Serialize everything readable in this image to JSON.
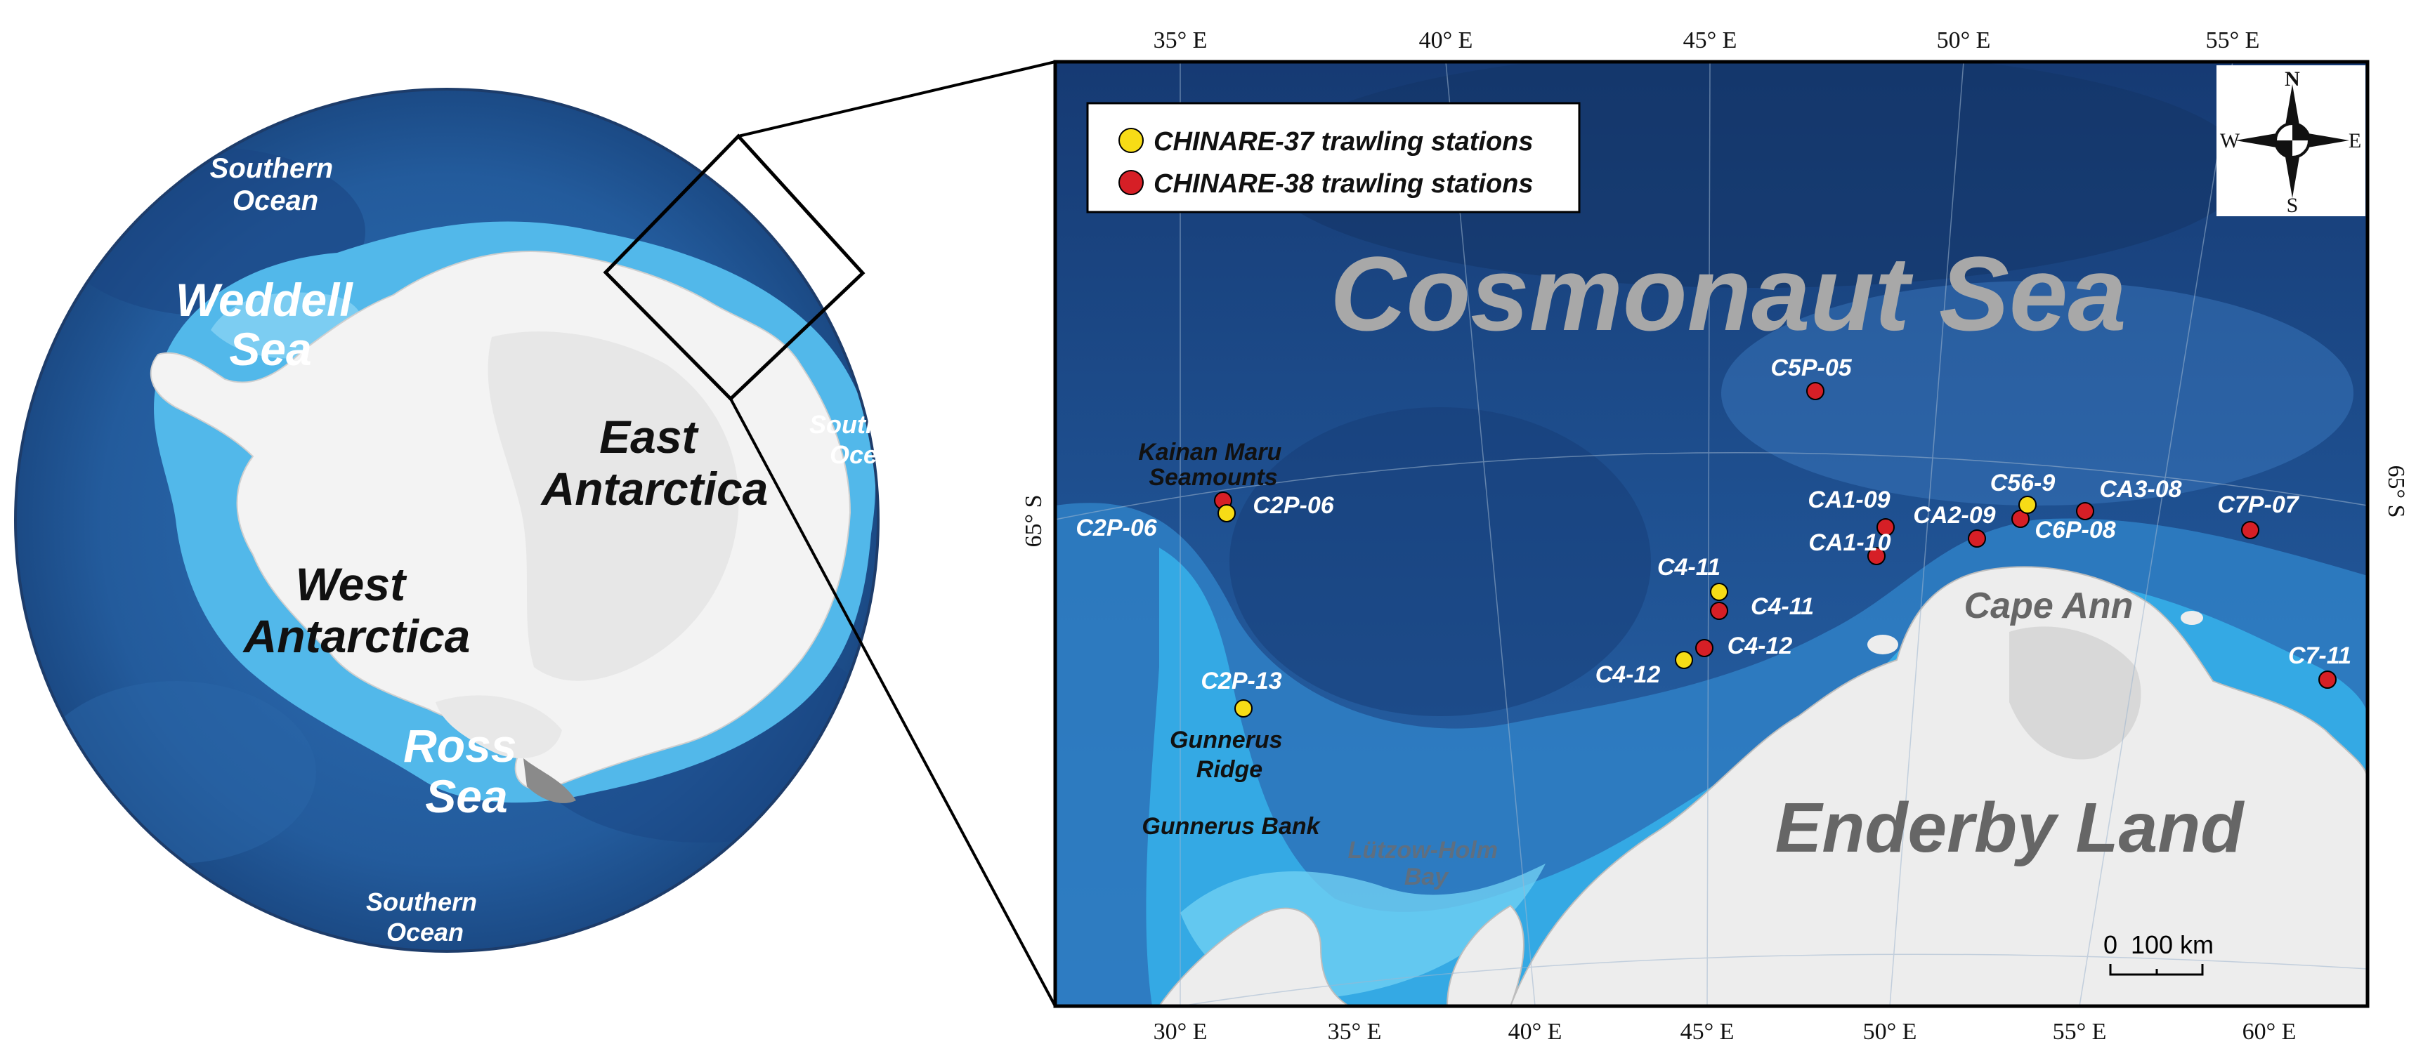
{
  "overview": {
    "labels": {
      "weddell": [
        "Weddell",
        "Sea"
      ],
      "ross": [
        "Ross",
        "Sea"
      ],
      "east": [
        "East",
        "Antarctica"
      ],
      "west": [
        "West",
        "Antarctica"
      ],
      "ocean_nw": [
        "Southern",
        "Ocean"
      ],
      "ocean_e": [
        "Southern",
        "Ocean"
      ],
      "ocean_s": [
        "Southern",
        "Ocean"
      ]
    }
  },
  "map": {
    "title": "Cosmonaut Sea",
    "land": "Enderby Land",
    "cape": "Cape Ann",
    "features": {
      "kainan": [
        "Kainan Maru",
        "Seamounts"
      ],
      "gunnerus_ridge": [
        "Gunnerus",
        "Ridge"
      ],
      "gunnerus_bank": "Gunnerus Bank",
      "lutzow": [
        "Lützow-Holm",
        "Bay"
      ]
    },
    "top_ticks": [
      "35° E",
      "40° E",
      "45° E",
      "50° E",
      "55° E"
    ],
    "bottom_ticks": [
      "30° E",
      "35° E",
      "40° E",
      "45° E",
      "50° E",
      "55° E",
      "60° E"
    ],
    "lat_label": "65° S",
    "legend": [
      {
        "label": "CHINARE-37 trawling stations",
        "color": "#f7dc16"
      },
      {
        "label": "CHINARE-38 trawling stations",
        "color": "#d61f26"
      }
    ],
    "compass": {
      "n": "N",
      "s": "S",
      "e": "E",
      "w": "W"
    },
    "scale": {
      "zero": "0",
      "label": "100 km"
    },
    "stations_37": [
      {
        "id": "C2P-06"
      },
      {
        "id": "C2P-13"
      },
      {
        "id": "C4-11"
      },
      {
        "id": "C4-12"
      },
      {
        "id": "C56-9"
      }
    ],
    "stations_38": [
      {
        "id": "C2P-06"
      },
      {
        "id": "C5P-05"
      },
      {
        "id": "CA1-09"
      },
      {
        "id": "CA1-10"
      },
      {
        "id": "C4-11"
      },
      {
        "id": "C4-12"
      },
      {
        "id": "CA2-09"
      },
      {
        "id": "C6P-08"
      },
      {
        "id": "CA3-08"
      },
      {
        "id": "C7P-07"
      },
      {
        "id": "C7-11"
      }
    ]
  }
}
